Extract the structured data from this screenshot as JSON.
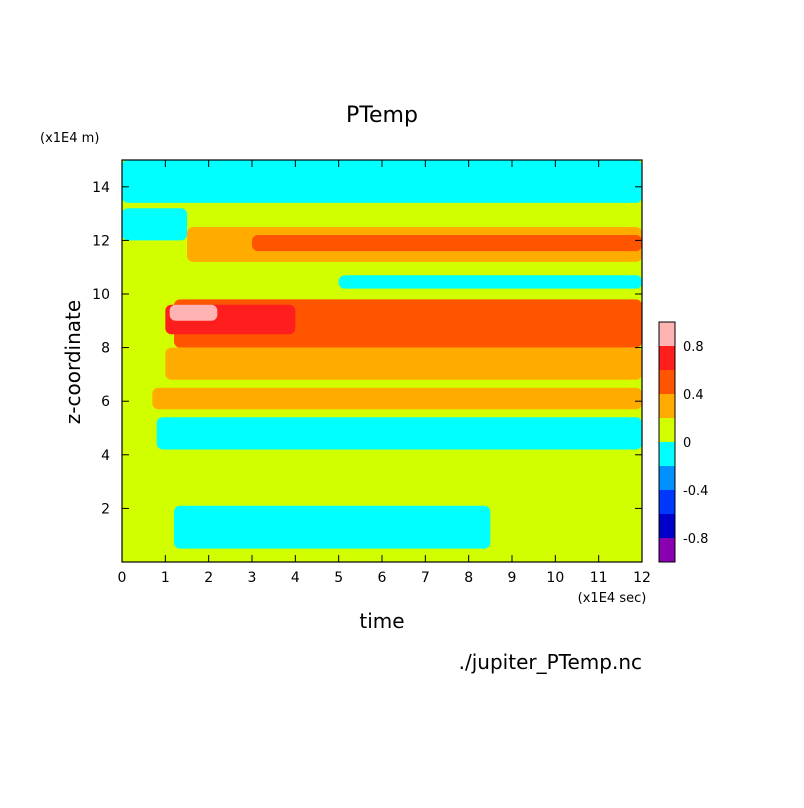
{
  "chart_data": {
    "type": "heatmap",
    "title": "PTemp",
    "xlabel": "time",
    "ylabel": "z-coordinate",
    "x_unit": "(x1E4 sec)",
    "y_unit": "(x1E4 m)",
    "xlim": [
      0,
      12
    ],
    "ylim": [
      0,
      15
    ],
    "x_ticks": [
      "0",
      "1",
      "2",
      "3",
      "4",
      "5",
      "6",
      "7",
      "8",
      "9",
      "10",
      "11",
      "12"
    ],
    "y_ticks": [
      "2",
      "4",
      "6",
      "8",
      "10",
      "12",
      "14"
    ],
    "colorbar": {
      "levels": [
        -1.0,
        -0.8,
        -0.6,
        -0.4,
        -0.2,
        0,
        0.2,
        0.4,
        0.6,
        0.8,
        1.0
      ],
      "colors": [
        "#8a00b0",
        "#0000c8",
        "#0037ff",
        "#0090ff",
        "#00ffff",
        "#d2ff00",
        "#ffab00",
        "#ff5500",
        "#ff1e1e",
        "#ffb4b4"
      ],
      "tick_labels": [
        "-0.8",
        "-0.4",
        "0",
        "0.4",
        "0.8"
      ]
    },
    "bands": [
      {
        "z": [
          13.4,
          15.0
        ],
        "t": [
          0,
          12
        ],
        "value": -0.1
      },
      {
        "z": [
          12.0,
          13.2
        ],
        "t": [
          0,
          1.5
        ],
        "value": -0.1
      },
      {
        "z": [
          11.2,
          12.5
        ],
        "t": [
          1.5,
          12
        ],
        "value": 0.3
      },
      {
        "z": [
          11.6,
          12.2
        ],
        "t": [
          3,
          12
        ],
        "value": 0.5
      },
      {
        "z": [
          10.2,
          10.7
        ],
        "t": [
          5,
          12
        ],
        "value": -0.1
      },
      {
        "z": [
          8.0,
          9.8
        ],
        "t": [
          1.2,
          12
        ],
        "value": 0.5
      },
      {
        "z": [
          8.5,
          9.6
        ],
        "t": [
          1.0,
          4.0
        ],
        "value": 0.7
      },
      {
        "z": [
          9.0,
          9.6
        ],
        "t": [
          1.1,
          2.2
        ],
        "value": 0.9
      },
      {
        "z": [
          6.8,
          8.0
        ],
        "t": [
          1.0,
          12
        ],
        "value": 0.3
      },
      {
        "z": [
          5.7,
          6.5
        ],
        "t": [
          0.7,
          12
        ],
        "value": 0.3
      },
      {
        "z": [
          4.2,
          5.4
        ],
        "t": [
          0.8,
          12
        ],
        "value": -0.1
      },
      {
        "z": [
          0.5,
          2.1
        ],
        "t": [
          1.2,
          8.5
        ],
        "value": -0.1
      }
    ],
    "file_label": "./jupiter_PTemp.nc"
  }
}
